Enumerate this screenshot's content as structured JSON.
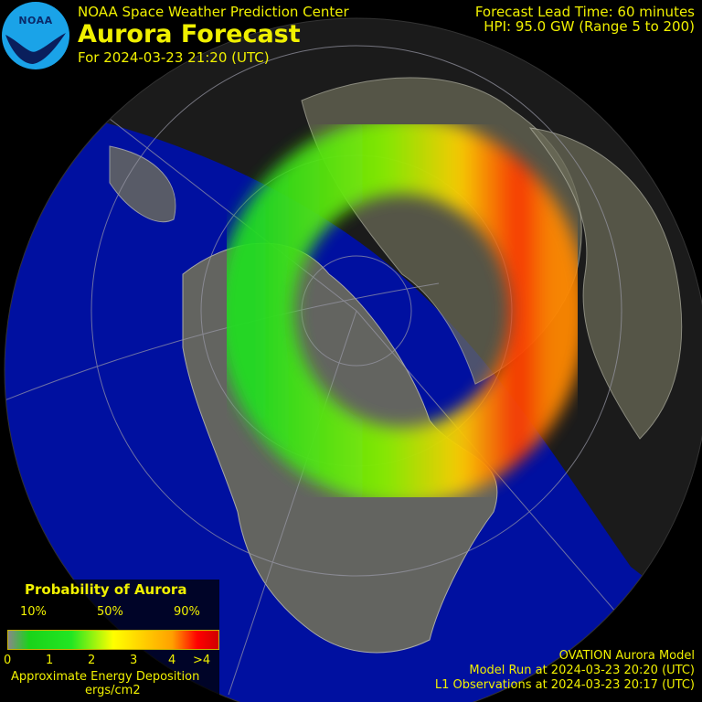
{
  "header": {
    "org": "NOAA Space Weather Prediction Center",
    "title": "Aurora Forecast",
    "forecast_for": "For 2024-03-23 21:20 (UTC)",
    "logo_text": "NOAA"
  },
  "info": {
    "lead_time": "Forecast Lead Time:  60 minutes",
    "hpi": "HPI:  95.0 GW (Range 5 to 200)"
  },
  "legend": {
    "title": "Probability of Aurora",
    "percent_labels": [
      "10%",
      "50%",
      "90%"
    ],
    "energy_labels": [
      "0",
      "1",
      "2",
      "3",
      "4",
      ">4"
    ],
    "caption": "Approximate Energy Deposition",
    "unit": "ergs/cm2"
  },
  "footer": {
    "model": "OVATION Aurora Model",
    "model_run": "Model Run at 2024-03-23 20:20 (UTC)",
    "observations": "L1 Observations at 2024-03-23 20:17 (UTC)"
  },
  "colors": {
    "text": "#f0f000",
    "night_ocean": "#0010a0",
    "day_side": "#1c1c14",
    "land": "#6e6e5a",
    "logo": "#1aa3e8"
  }
}
